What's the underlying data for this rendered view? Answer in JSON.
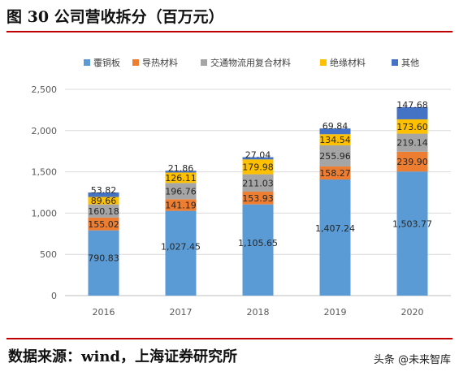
{
  "figure_title": "图 30 公司营收拆分（百万元）",
  "footer_source": "数据来源：wind，上海证券研究所",
  "watermark": "头条 @未来智库",
  "chart_data": {
    "type": "bar",
    "stacked": true,
    "categories": [
      "2016",
      "2017",
      "2018",
      "2019",
      "2020"
    ],
    "series": [
      {
        "name": "覆铜板",
        "color": "#5b9bd5",
        "values": [
          790.83,
          1027.45,
          1105.65,
          1407.24,
          1503.77
        ],
        "labels": [
          "790.83",
          "1,027.45",
          "1,105.65",
          "1,407.24",
          "1,503.77"
        ]
      },
      {
        "name": "导热材料",
        "color": "#ed7d31",
        "values": [
          155.02,
          141.19,
          153.93,
          158.27,
          239.9
        ],
        "labels": [
          "155.02",
          "141.19",
          "153.93",
          "158.27",
          "239.90"
        ]
      },
      {
        "name": "交通物流用复合材料",
        "color": "#a5a5a5",
        "values": [
          160.18,
          196.76,
          211.03,
          255.96,
          219.14
        ],
        "labels": [
          "160.18",
          "196.76",
          "211.03",
          "255.96",
          "219.14"
        ]
      },
      {
        "name": "绝缘材料",
        "color": "#ffc000",
        "values": [
          89.66,
          126.11,
          179.98,
          134.54,
          173.6
        ],
        "labels": [
          "89.66",
          "126.11",
          "179.98",
          "134.54",
          "173.60"
        ]
      },
      {
        "name": "其他",
        "color": "#4472c4",
        "values": [
          53.82,
          21.86,
          27.04,
          69.84,
          147.68
        ],
        "labels": [
          "53.82",
          "21.86",
          "27.04",
          "69.84",
          "147.68"
        ]
      }
    ],
    "yticks": [
      "0",
      "500",
      "1,000",
      "1,500",
      "2,000",
      "2,500"
    ],
    "ylim": [
      0,
      2500
    ],
    "legend_position": "top",
    "grid": true
  }
}
